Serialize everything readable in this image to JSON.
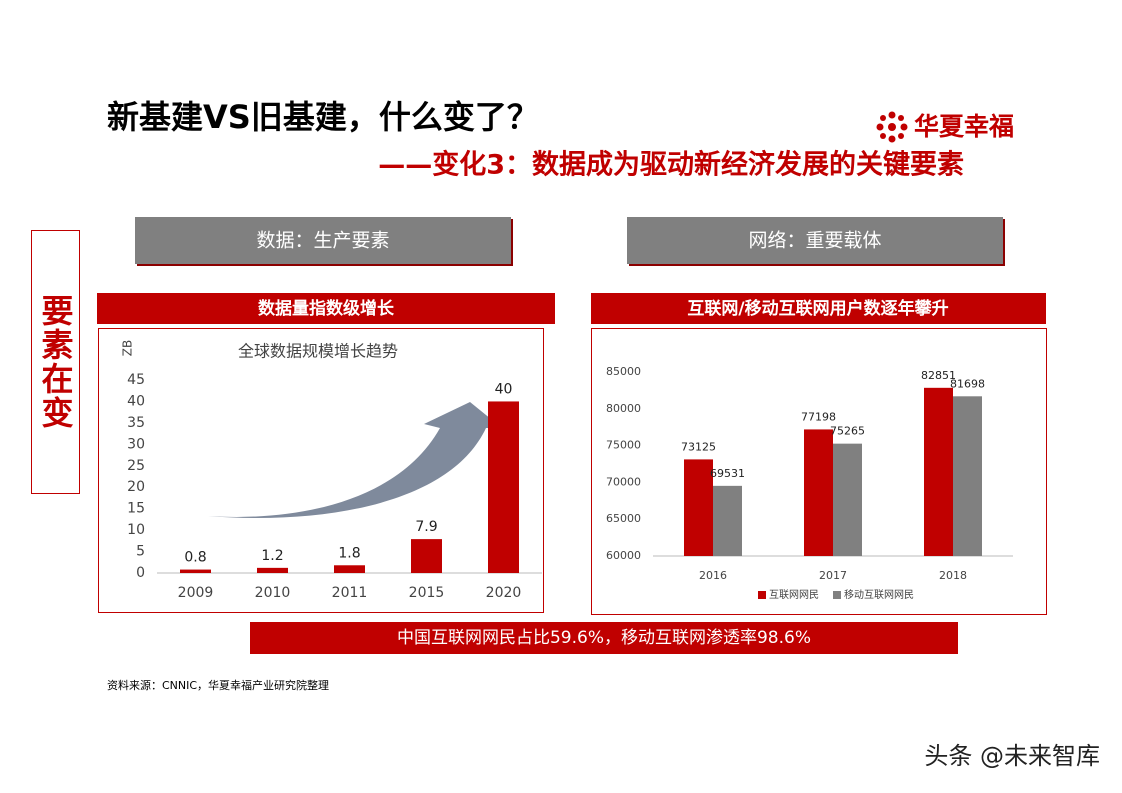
{
  "header": {
    "title": "新基建VS旧基建，什么变了？",
    "subtitle": "——变化3：数据成为驱动新经济发展的关键要素",
    "logo": "华夏幸福"
  },
  "side_label": "要素在变",
  "panels": [
    {
      "tag": "数据：生产要素",
      "heading": "数据量指数级增长"
    },
    {
      "tag": "网络：重要载体",
      "heading": "互联网/移动互联网用户数逐年攀升"
    }
  ],
  "chart_data": [
    {
      "type": "bar",
      "title": "全球数据规模增长趋势",
      "y_label": "ZB",
      "categories": [
        "2009",
        "2010",
        "2011",
        "2015",
        "2020"
      ],
      "values": [
        0.8,
        1.2,
        1.8,
        7.9,
        40
      ],
      "color": "#c00000",
      "ylim": [
        0,
        45
      ],
      "yticks": [
        0,
        5,
        10,
        15,
        20,
        25,
        30,
        35,
        40,
        45
      ],
      "grid": false,
      "data_labels": true
    },
    {
      "type": "bar",
      "categories": [
        "2016",
        "2017",
        "2018"
      ],
      "series": [
        {
          "name": "互联网网民",
          "color": "#c00000",
          "values": [
            73125,
            77198,
            82851
          ]
        },
        {
          "name": "移动互联网网民",
          "color": "#808080",
          "values": [
            69531,
            75265,
            81698
          ]
        }
      ],
      "ylim": [
        60000,
        85000
      ],
      "yticks": [
        60000,
        65000,
        70000,
        75000,
        80000,
        85000
      ],
      "grid": false,
      "data_labels": true,
      "legend": "bottom"
    }
  ],
  "summary": "中国互联网网民占比59.6%，移动互联网渗透率98.6%",
  "source": "资料来源：CNNIC，华夏幸福产业研究院整理",
  "watermark": "头条 @未来智库"
}
